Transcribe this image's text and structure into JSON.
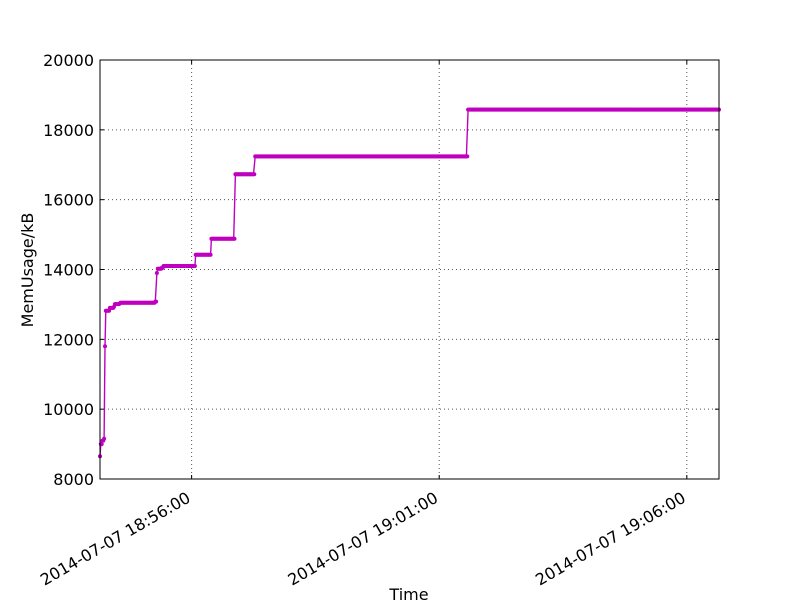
{
  "chart_data": {
    "type": "line",
    "title": "",
    "xlabel": "Time",
    "ylabel": "MemUsage/kB",
    "ylim": [
      8000,
      20000
    ],
    "xlim": [
      "2014-07-07 18:54:09",
      "2014-07-07 19:06:39"
    ],
    "y_ticks": [
      8000,
      10000,
      12000,
      14000,
      16000,
      18000,
      20000
    ],
    "x_ticks": [
      "2014-07-07 18:56:00",
      "2014-07-07 19:01:00",
      "2014-07-07 19:06:00"
    ],
    "grid": true,
    "grid_style": "dotted",
    "legend": "none",
    "colors": {
      "series": "#bf00bf",
      "axis": "#000000",
      "grid": "#555555"
    },
    "series": [
      {
        "name": "",
        "marker": "dot",
        "points": [
          {
            "x": "2014-07-07 18:54:09",
            "y": 8650
          },
          {
            "x": "2014-07-07 18:54:10",
            "y": 9000
          },
          {
            "x": "2014-07-07 18:54:12",
            "y": 9100
          },
          {
            "x": "2014-07-07 18:54:14",
            "y": 9150
          },
          {
            "x": "2014-07-07 18:54:15",
            "y": 11800
          },
          {
            "x": "2014-07-07 18:54:16",
            "y": 12820
          },
          {
            "x": "2014-07-07 18:54:20",
            "y": 12820
          },
          {
            "x": "2014-07-07 18:54:21",
            "y": 12900
          },
          {
            "x": "2014-07-07 18:54:26",
            "y": 12930
          },
          {
            "x": "2014-07-07 18:54:27",
            "y": 13010
          },
          {
            "x": "2014-07-07 18:54:33",
            "y": 13030
          },
          {
            "x": "2014-07-07 18:54:34",
            "y": 13050
          },
          {
            "x": "2014-07-07 18:55:15",
            "y": 13050
          },
          {
            "x": "2014-07-07 18:55:16",
            "y": 13080
          },
          {
            "x": "2014-07-07 18:55:18",
            "y": 13900
          },
          {
            "x": "2014-07-07 18:55:19",
            "y": 14020
          },
          {
            "x": "2014-07-07 18:55:24",
            "y": 14050
          },
          {
            "x": "2014-07-07 18:55:26",
            "y": 14100
          },
          {
            "x": "2014-07-07 18:56:04",
            "y": 14100
          },
          {
            "x": "2014-07-07 18:56:05",
            "y": 14420
          },
          {
            "x": "2014-07-07 18:56:23",
            "y": 14420
          },
          {
            "x": "2014-07-07 18:56:24",
            "y": 14880
          },
          {
            "x": "2014-07-07 18:56:51",
            "y": 14880
          },
          {
            "x": "2014-07-07 18:56:53",
            "y": 16730
          },
          {
            "x": "2014-07-07 18:57:15",
            "y": 16730
          },
          {
            "x": "2014-07-07 18:57:17",
            "y": 17240
          },
          {
            "x": "2014-07-07 19:01:33",
            "y": 17240
          },
          {
            "x": "2014-07-07 19:01:35",
            "y": 18580
          },
          {
            "x": "2014-07-07 19:06:39",
            "y": 18580
          }
        ]
      }
    ]
  }
}
